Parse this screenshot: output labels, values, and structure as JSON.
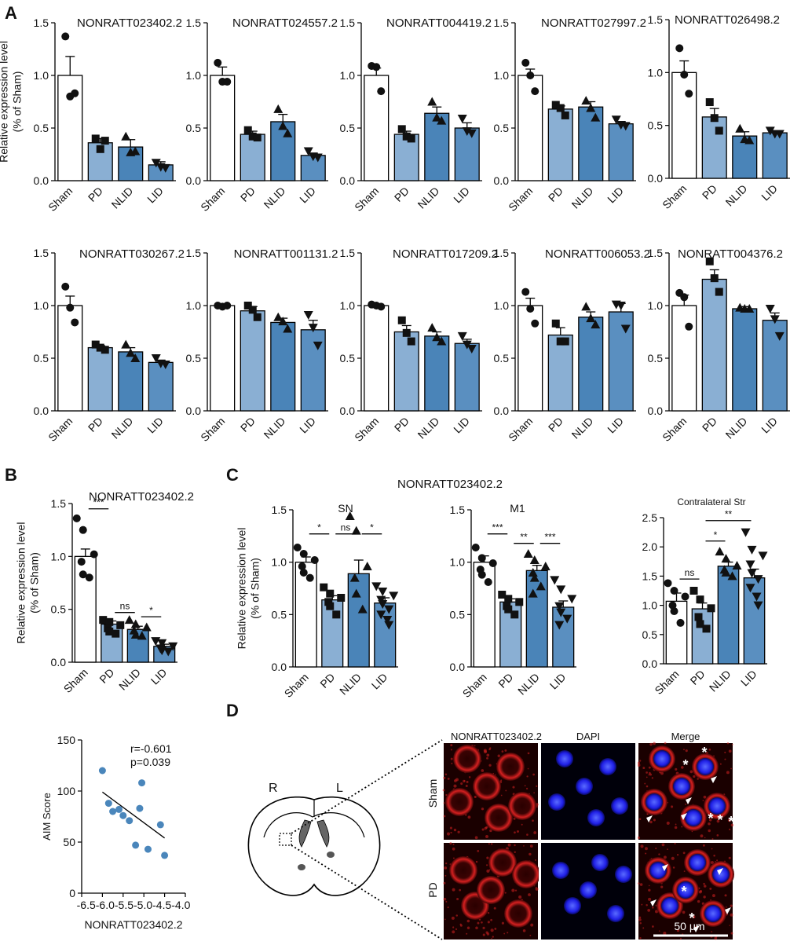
{
  "panel_labels": [
    "A",
    "B",
    "C",
    "D"
  ],
  "colors": {
    "sham": "#ffffff",
    "pd": "#8aafd3",
    "nlid": "#4a84b8",
    "lid": "#5a8fc0",
    "point": "#111111",
    "scatter_dot": "#4a86bb",
    "fluor_red": "#d42020",
    "fluor_blue": "#1f1fe6"
  },
  "chart_data": [
    {
      "id": "A1",
      "type": "bar",
      "title": "NONRATT023402.2",
      "categories": [
        "Sham",
        "PD",
        "NLID",
        "LID"
      ],
      "values": [
        1.0,
        0.36,
        0.32,
        0.15
      ],
      "errors": [
        0.18,
        0.04,
        0.07,
        0.03
      ],
      "points": [
        [
          1.37,
          0.8,
          0.83
        ],
        [
          0.4,
          0.3,
          0.38
        ],
        [
          0.42,
          0.27,
          0.28
        ],
        [
          0.17,
          0.13,
          0.12
        ]
      ],
      "ylim": [
        0,
        1.5
      ],
      "yticks": [
        "0.0",
        "0.5",
        "1.0",
        "1.5"
      ],
      "ylabel": [
        "Relative expression level",
        "(% of Sham)"
      ]
    },
    {
      "id": "A2",
      "type": "bar",
      "title": "NONRATT024557.2",
      "categories": [
        "Sham",
        "PD",
        "NLID",
        "LID"
      ],
      "values": [
        1.0,
        0.44,
        0.56,
        0.24
      ],
      "errors": [
        0.08,
        0.03,
        0.07,
        0.02
      ],
      "points": [
        [
          1.12,
          0.94,
          0.94
        ],
        [
          0.48,
          0.42,
          0.41
        ],
        [
          0.68,
          0.52,
          0.45
        ],
        [
          0.28,
          0.23,
          0.22
        ]
      ],
      "ylim": [
        0,
        1.5
      ],
      "yticks": [
        "0.0",
        "0.5",
        "1.0",
        "1.5"
      ]
    },
    {
      "id": "A3",
      "type": "bar",
      "title": "NONRATT004419.2",
      "categories": [
        "Sham",
        "PD",
        "NLID",
        "LID"
      ],
      "values": [
        1.0,
        0.44,
        0.64,
        0.5
      ],
      "errors": [
        0.07,
        0.03,
        0.06,
        0.05
      ],
      "points": [
        [
          1.09,
          1.08,
          0.85
        ],
        [
          0.49,
          0.42,
          0.4
        ],
        [
          0.75,
          0.6,
          0.57
        ],
        [
          0.59,
          0.47,
          0.45
        ]
      ],
      "ylim": [
        0,
        1.5
      ],
      "yticks": [
        "0.0",
        "0.5",
        "1.0",
        "1.5"
      ]
    },
    {
      "id": "A4",
      "type": "bar",
      "title": "NONRATT027997.2",
      "categories": [
        "Sham",
        "PD",
        "NLID",
        "LID"
      ],
      "values": [
        1.0,
        0.68,
        0.7,
        0.54
      ],
      "errors": [
        0.06,
        0.03,
        0.05,
        0.02
      ],
      "points": [
        [
          1.12,
          1.0,
          0.85
        ],
        [
          0.72,
          0.69,
          0.62
        ],
        [
          0.76,
          0.69,
          0.6
        ],
        [
          0.58,
          0.53,
          0.52
        ]
      ],
      "ylim": [
        0,
        1.5
      ],
      "yticks": [
        "0.0",
        "0.5",
        "1.0",
        "1.5"
      ]
    },
    {
      "id": "A5",
      "type": "bar",
      "title": "NONRATT026498.2",
      "categories": [
        "Sham",
        "PD",
        "NLID",
        "LID"
      ],
      "values": [
        1.0,
        0.58,
        0.4,
        0.43
      ],
      "errors": [
        0.11,
        0.08,
        0.04,
        0.02
      ],
      "points": [
        [
          1.23,
          0.98,
          0.8
        ],
        [
          0.72,
          0.57,
          0.45
        ],
        [
          0.47,
          0.37,
          0.36
        ],
        [
          0.45,
          0.42,
          0.42
        ]
      ],
      "ylim": [
        0,
        1.5
      ],
      "yticks": [
        "0.0",
        "0.5",
        "1.0",
        "1.5"
      ]
    },
    {
      "id": "A6",
      "type": "bar",
      "title": "NONRATT030267.2",
      "categories": [
        "Sham",
        "PD",
        "NLID",
        "LID"
      ],
      "values": [
        1.0,
        0.6,
        0.56,
        0.46
      ],
      "errors": [
        0.09,
        0.02,
        0.04,
        0.02
      ],
      "points": [
        [
          1.18,
          0.98,
          0.84
        ],
        [
          0.63,
          0.6,
          0.58
        ],
        [
          0.63,
          0.55,
          0.5
        ],
        [
          0.5,
          0.45,
          0.44
        ]
      ],
      "ylim": [
        0,
        1.5
      ],
      "yticks": [
        "0.0",
        "0.5",
        "1.0",
        "1.5"
      ]
    },
    {
      "id": "A7",
      "type": "bar",
      "title": "NONRATT001131.2",
      "categories": [
        "Sham",
        "PD",
        "NLID",
        "LID"
      ],
      "values": [
        1.0,
        0.95,
        0.84,
        0.77
      ],
      "errors": [
        0.01,
        0.04,
        0.04,
        0.09
      ],
      "points": [
        [
          1.0,
          0.99,
          1.0
        ],
        [
          1.0,
          0.96,
          0.89
        ],
        [
          0.89,
          0.85,
          0.78
        ],
        [
          0.91,
          0.79,
          0.62
        ]
      ],
      "ylim": [
        0,
        1.5
      ],
      "yticks": [
        "0.0",
        "0.5",
        "1.0",
        "1.5"
      ]
    },
    {
      "id": "A8",
      "type": "bar",
      "title": "NONRATT017209.2",
      "categories": [
        "Sham",
        "PD",
        "NLID",
        "LID"
      ],
      "values": [
        1.0,
        0.75,
        0.71,
        0.64
      ],
      "errors": [
        0.01,
        0.06,
        0.04,
        0.04
      ],
      "points": [
        [
          1.01,
          1.0,
          0.99
        ],
        [
          0.86,
          0.74,
          0.66
        ],
        [
          0.79,
          0.7,
          0.66
        ],
        [
          0.71,
          0.63,
          0.59
        ]
      ],
      "ylim": [
        0,
        1.5
      ],
      "yticks": [
        "0.0",
        "0.5",
        "1.0",
        "1.5"
      ]
    },
    {
      "id": "A9",
      "type": "bar",
      "title": "NONRATT006053.2",
      "categories": [
        "Sham",
        "PD",
        "NLID",
        "LID"
      ],
      "values": [
        1.0,
        0.72,
        0.89,
        0.94
      ],
      "errors": [
        0.07,
        0.07,
        0.05,
        0.08
      ],
      "points": [
        [
          1.13,
          0.97,
          0.83
        ],
        [
          0.83,
          0.66,
          0.66
        ],
        [
          0.99,
          0.88,
          0.82
        ],
        [
          1.01,
          1.0,
          0.78
        ]
      ],
      "ylim": [
        0,
        1.5
      ],
      "yticks": [
        "0.0",
        "0.5",
        "1.0",
        "1.5"
      ]
    },
    {
      "id": "A10",
      "type": "bar",
      "title": "NONRATT004376.2",
      "categories": [
        "Sham",
        "PD",
        "NLID",
        "LID"
      ],
      "values": [
        1.0,
        1.25,
        0.97,
        0.86
      ],
      "errors": [
        0.1,
        0.09,
        0.02,
        0.07
      ],
      "points": [
        [
          1.12,
          1.08,
          0.8
        ],
        [
          1.42,
          1.26,
          1.13
        ],
        [
          0.98,
          0.97,
          0.97
        ],
        [
          0.97,
          0.87,
          0.71
        ]
      ],
      "ylim": [
        0,
        1.5
      ],
      "yticks": [
        "0.0",
        "0.5",
        "1.0",
        "1.5"
      ]
    },
    {
      "id": "B",
      "type": "bar",
      "title": "NONRATT023402.2",
      "categories": [
        "Sham",
        "PD",
        "NLID",
        "LID"
      ],
      "values": [
        1.0,
        0.36,
        0.31,
        0.15
      ],
      "errors": [
        0.07,
        0.03,
        0.03,
        0.02
      ],
      "points": [
        [
          1.36,
          1.25,
          1.02,
          0.95,
          0.83,
          0.8
        ],
        [
          0.4,
          0.38,
          0.35,
          0.32,
          0.29,
          0.27
        ],
        [
          0.4,
          0.36,
          0.33,
          0.3,
          0.26,
          0.25
        ],
        [
          0.2,
          0.18,
          0.15,
          0.13,
          0.11,
          0.1
        ]
      ],
      "ylim": [
        0,
        1.5
      ],
      "yticks": [
        "0.0",
        "0.5",
        "1.0",
        "1.5"
      ],
      "ylabel": [
        "Relative expression level",
        "(% of Sham)"
      ],
      "sig": [
        {
          "from": 0,
          "to": 1,
          "label": "***",
          "value": 1.45
        },
        {
          "from": 1,
          "to": 2,
          "label": "ns",
          "value": 0.47
        },
        {
          "from": 2,
          "to": 3,
          "label": "*",
          "value": 0.43
        }
      ]
    },
    {
      "id": "C1",
      "type": "bar",
      "title": "SN",
      "categories": [
        "Sham",
        "PD",
        "NLID",
        "LID"
      ],
      "values": [
        1.0,
        0.64,
        0.89,
        0.61
      ],
      "errors": [
        0.05,
        0.04,
        0.13,
        0.05
      ],
      "points": [
        [
          1.14,
          1.08,
          1.02,
          0.96,
          0.9,
          0.85
        ],
        [
          0.76,
          0.7,
          0.66,
          0.62,
          0.58,
          0.5
        ],
        [
          1.44,
          1.3,
          0.96,
          0.85,
          0.7,
          0.55
        ],
        [
          0.77,
          0.72,
          0.68,
          0.64,
          0.6,
          0.55,
          0.5,
          0.45,
          0.4
        ]
      ],
      "ylim": [
        0,
        1.5
      ],
      "yticks": [
        "0.0",
        "0.5",
        "1.0",
        "1.5"
      ],
      "ylabel": [
        "Relative expression level",
        "(% of Sham)"
      ],
      "sig": [
        {
          "from": 0,
          "to": 1,
          "label": "*",
          "value": 1.27
        },
        {
          "from": 1,
          "to": 2,
          "label": "ns",
          "value": 1.27
        },
        {
          "from": 2,
          "to": 3,
          "label": "*",
          "value": 1.27
        }
      ]
    },
    {
      "id": "C2",
      "type": "bar",
      "title": "M1",
      "categories": [
        "Sham",
        "PD",
        "NLID",
        "LID"
      ],
      "values": [
        1.0,
        0.62,
        0.92,
        0.57
      ],
      "errors": [
        0.06,
        0.03,
        0.05,
        0.06
      ],
      "points": [
        [
          1.14,
          1.04,
          0.99,
          0.93,
          0.88,
          0.81
        ],
        [
          0.69,
          0.65,
          0.62,
          0.58,
          0.55,
          0.5
        ],
        [
          1.08,
          1.02,
          0.96,
          0.9,
          0.85,
          0.77,
          0.7
        ],
        [
          0.83,
          0.74,
          0.65,
          0.58,
          0.52,
          0.46,
          0.4
        ]
      ],
      "ylim": [
        0,
        1.5
      ],
      "yticks": [
        "0.0",
        "0.5",
        "1.0",
        "1.5"
      ],
      "sig": [
        {
          "from": 0,
          "to": 1,
          "label": "***",
          "value": 1.27
        },
        {
          "from": 1,
          "to": 2,
          "label": "**",
          "value": 1.18
        },
        {
          "from": 2,
          "to": 3,
          "label": "***",
          "value": 1.18
        }
      ]
    },
    {
      "id": "C3",
      "type": "bar",
      "title": "Contralateral Str",
      "categories": [
        "Sham",
        "PD",
        "NLID",
        "LID"
      ],
      "values": [
        1.07,
        0.94,
        1.67,
        1.47
      ],
      "errors": [
        0.14,
        0.1,
        0.07,
        0.15
      ],
      "points": [
        [
          1.38,
          1.25,
          1.15,
          1.0,
          0.9,
          0.7
        ],
        [
          1.25,
          1.1,
          0.95,
          0.8,
          0.68,
          0.6
        ],
        [
          1.92,
          1.8,
          1.68,
          1.61,
          1.56,
          1.5
        ],
        [
          2.25,
          1.95,
          1.85,
          1.7,
          1.55,
          1.45,
          1.3,
          1.15,
          1.0
        ]
      ],
      "ylim": [
        0,
        2.5
      ],
      "yticks": [
        "0.0",
        "0.5",
        "1.0",
        "1.5",
        "2.0",
        "2.5"
      ],
      "sig": [
        {
          "from": 0,
          "to": 1,
          "label": "ns",
          "value": 1.45
        },
        {
          "from": 1,
          "to": 2,
          "label": "*",
          "value": 2.1
        },
        {
          "from": 1,
          "to": 3,
          "label": "**",
          "value": 2.45
        }
      ]
    },
    {
      "id": "Corr",
      "type": "scatter",
      "x": [
        -6.0,
        -5.85,
        -5.75,
        -5.6,
        -5.5,
        -5.35,
        -5.2,
        -5.1,
        -5.05,
        -4.9,
        -4.6,
        -4.5
      ],
      "y": [
        120,
        88,
        80,
        82,
        76,
        71,
        47,
        83,
        108,
        43,
        67,
        37
      ],
      "xlim": [
        -6.5,
        -4.0
      ],
      "ylim": [
        0,
        150
      ],
      "xticks": [
        "-6.5",
        "-6.0",
        "-5.5",
        "-5.0",
        "-4.5",
        "-4.0"
      ],
      "yticks": [
        "0",
        "50",
        "100",
        "150"
      ],
      "xlabel": "NONRATT023402.2",
      "ylabel": "AIM Score",
      "fit": {
        "x": [
          -6.0,
          -4.5
        ],
        "y": [
          99,
          54
        ]
      },
      "stats": [
        "r=-0.601",
        "p=0.039"
      ]
    }
  ],
  "panel_c_title": "NONRATT023402.2",
  "panel_d": {
    "brain_labels": [
      "R",
      "L"
    ],
    "column_headers": [
      "NONRATT023402.2",
      "DAPI",
      "Merge"
    ],
    "row_labels": [
      "Sham",
      "PD"
    ],
    "scale_bar": "50 μm",
    "marker_star": "*"
  }
}
